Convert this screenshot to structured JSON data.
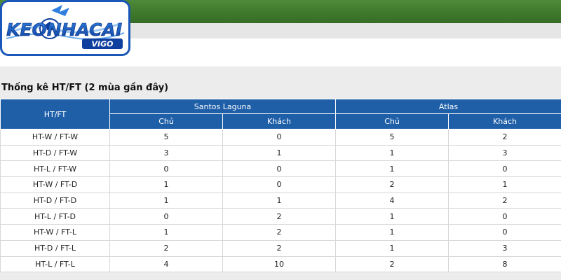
{
  "brand": {
    "logo_text": "KEONHACAI",
    "logo_sub": "VIGO",
    "colors": {
      "primary": "#1b57b8",
      "accent": "#f5b800",
      "field": "#3f7a2c"
    }
  },
  "section": {
    "title": "Thống kê HT/FT (2 mùa gần đây)"
  },
  "table": {
    "corner_header": "HT/FT",
    "teams": [
      {
        "name": "Santos Laguna",
        "home": "Chủ",
        "away": "Khách"
      },
      {
        "name": "Atlas",
        "home": "Chủ",
        "away": "Khách"
      }
    ],
    "rows": [
      {
        "label": "HT-W / FT-W",
        "values": [
          "5",
          "0",
          "5",
          "2"
        ]
      },
      {
        "label": "HT-D / FT-W",
        "values": [
          "3",
          "1",
          "1",
          "3"
        ]
      },
      {
        "label": "HT-L / FT-W",
        "values": [
          "0",
          "0",
          "1",
          "0"
        ]
      },
      {
        "label": "HT-W / FT-D",
        "values": [
          "1",
          "0",
          "2",
          "1"
        ]
      },
      {
        "label": "HT-D / FT-D",
        "values": [
          "1",
          "1",
          "4",
          "2"
        ]
      },
      {
        "label": "HT-L / FT-D",
        "values": [
          "0",
          "2",
          "1",
          "0"
        ]
      },
      {
        "label": "HT-W / FT-L",
        "values": [
          "1",
          "2",
          "1",
          "0"
        ]
      },
      {
        "label": "HT-D / FT-L",
        "values": [
          "2",
          "2",
          "1",
          "3"
        ]
      },
      {
        "label": "HT-L / FT-L",
        "values": [
          "4",
          "10",
          "2",
          "8"
        ]
      }
    ]
  }
}
